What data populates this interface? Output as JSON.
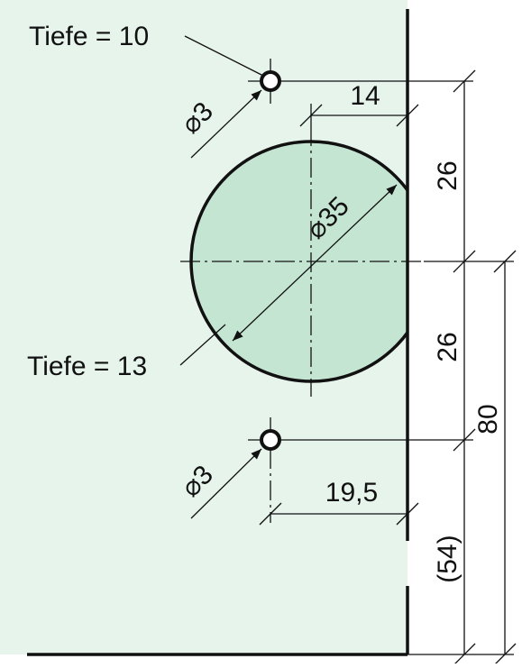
{
  "labels": {
    "depth_small": "Tiefe = 10",
    "depth_large": "Tiefe = 13",
    "hole_top": "⌀3",
    "hole_bottom": "⌀3",
    "bore_diameter": "⌀35",
    "offset_bore": "14",
    "offset_holes": "19,5",
    "upper_spacing": "26",
    "lower_spacing": "26",
    "total_height": "80",
    "bottom_distance": "(54)"
  }
}
